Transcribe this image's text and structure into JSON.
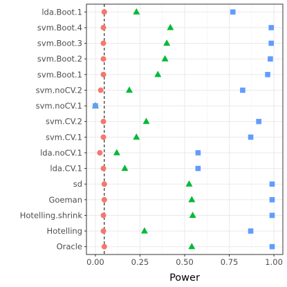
{
  "chart_data": {
    "type": "scatter",
    "title": "",
    "xlabel": "Power",
    "ylabel": "",
    "xlim": [
      -0.05,
      1.05
    ],
    "x_ticks": [
      0.0,
      0.25,
      0.5,
      0.75,
      1.0
    ],
    "x_tick_labels": [
      "0.00",
      "0.25",
      "0.50",
      "0.75",
      "1.00"
    ],
    "grid": true,
    "legend": "none",
    "reference_line": {
      "x": 0.05,
      "style": "dashed"
    },
    "categories": [
      "lda.Boot.1",
      "svm.Boot.4",
      "svm.Boot.3",
      "svm.Boot.2",
      "svm.Boot.1",
      "svm.noCV.2",
      "svm.noCV.1",
      "svm.CV.2",
      "svm.CV.1",
      "lda.noCV.1",
      "lda.CV.1",
      "sd",
      "Goeman",
      "Hotelling.shrink",
      "Hotelling",
      "Oracle"
    ],
    "series": [
      {
        "marker": "circle",
        "color": "#F8766D",
        "values": [
          0.05,
          0.045,
          0.045,
          0.045,
          0.045,
          0.03,
          0.0,
          0.045,
          0.045,
          0.025,
          0.045,
          0.05,
          0.05,
          0.045,
          0.045,
          0.05
        ]
      },
      {
        "marker": "triangle",
        "color": "#00BA38",
        "values": [
          0.23,
          0.42,
          0.4,
          0.39,
          0.35,
          0.19,
          0.0,
          0.285,
          0.23,
          0.12,
          0.165,
          0.525,
          0.54,
          0.545,
          0.275,
          0.54
        ]
      },
      {
        "marker": "square",
        "color": "#619CFF",
        "values": [
          0.77,
          0.985,
          0.985,
          0.98,
          0.965,
          0.825,
          0.0,
          0.915,
          0.87,
          0.575,
          0.575,
          0.99,
          0.99,
          0.99,
          0.87,
          0.99
        ]
      }
    ]
  }
}
